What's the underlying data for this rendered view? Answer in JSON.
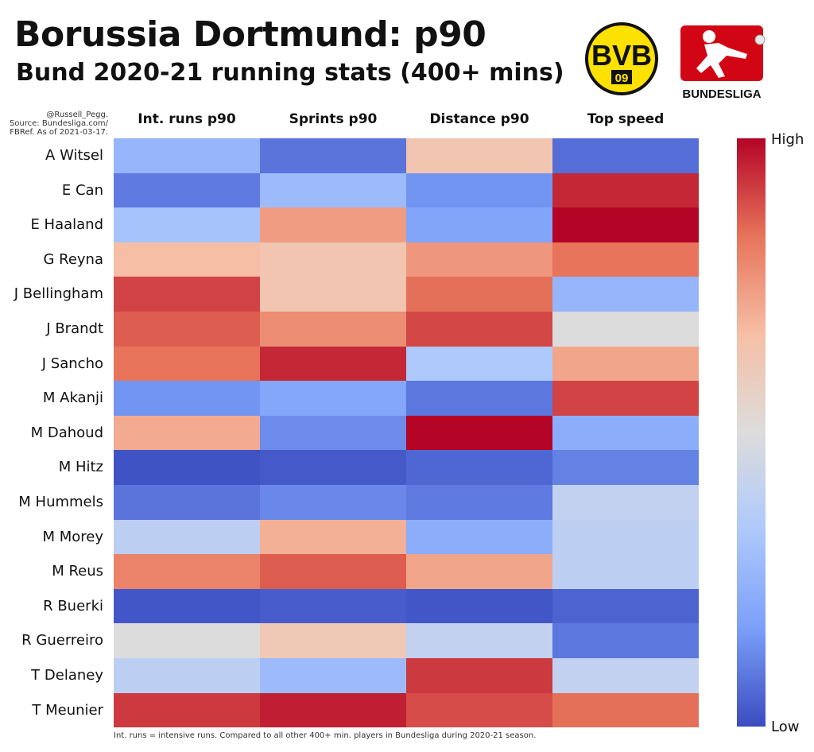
{
  "header": {
    "title": "Borussia Dortmund: p90",
    "subtitle": "Bund 2020-21 running stats (400+ mins)"
  },
  "credit": {
    "line1": "@Russell_Pegg.",
    "line2": "Source: Bundesliga.com/",
    "line3": "FBRef. As of 2021-03-17."
  },
  "logos": {
    "club_text": "BVB",
    "club_sub": "09",
    "league_text_a": "BUNDES",
    "league_text_b": "LIGA"
  },
  "colorbar": {
    "high_label": "High",
    "low_label": "Low"
  },
  "footnote": "Int. runs = intensive runs. Compared to all other 400+ min. players in Bundesliga during 2020-21 season.",
  "colors": {
    "low": "#3b4cc0",
    "mid": "#dddcdc",
    "high": "#b40426"
  },
  "chart_data": {
    "type": "heatmap",
    "x": [
      "Int. runs p90",
      "Sprints p90",
      "Distance p90",
      "Top speed"
    ],
    "y": [
      "A Witsel",
      "E Can",
      "E Haaland",
      "G Reyna",
      "J Bellingham",
      "J Brandt",
      "J Sancho",
      "M Akanji",
      "M Dahoud",
      "M Hitz",
      "M Hummels",
      "M Morey",
      "M Reus",
      "R Buerki",
      "R Guerreiro",
      "T Delaney",
      "T Meunier"
    ],
    "values": [
      [
        0.33,
        0.12,
        0.58,
        0.1
      ],
      [
        0.14,
        0.35,
        0.22,
        0.92
      ],
      [
        0.38,
        0.67,
        0.27,
        1.0
      ],
      [
        0.6,
        0.58,
        0.68,
        0.75
      ],
      [
        0.86,
        0.58,
        0.76,
        0.33
      ],
      [
        0.8,
        0.7,
        0.85,
        0.5
      ],
      [
        0.75,
        0.92,
        0.4,
        0.65
      ],
      [
        0.22,
        0.28,
        0.13,
        0.86
      ],
      [
        0.64,
        0.19,
        1.0,
        0.3
      ],
      [
        0.02,
        0.04,
        0.08,
        0.16
      ],
      [
        0.12,
        0.18,
        0.14,
        0.44
      ],
      [
        0.43,
        0.63,
        0.3,
        0.43
      ],
      [
        0.72,
        0.8,
        0.65,
        0.43
      ],
      [
        0.03,
        0.05,
        0.03,
        0.07
      ],
      [
        0.5,
        0.57,
        0.44,
        0.13
      ],
      [
        0.43,
        0.35,
        0.88,
        0.44
      ],
      [
        0.88,
        0.94,
        0.84,
        0.76
      ]
    ],
    "colorbar": {
      "high": "High",
      "low": "Low"
    }
  }
}
